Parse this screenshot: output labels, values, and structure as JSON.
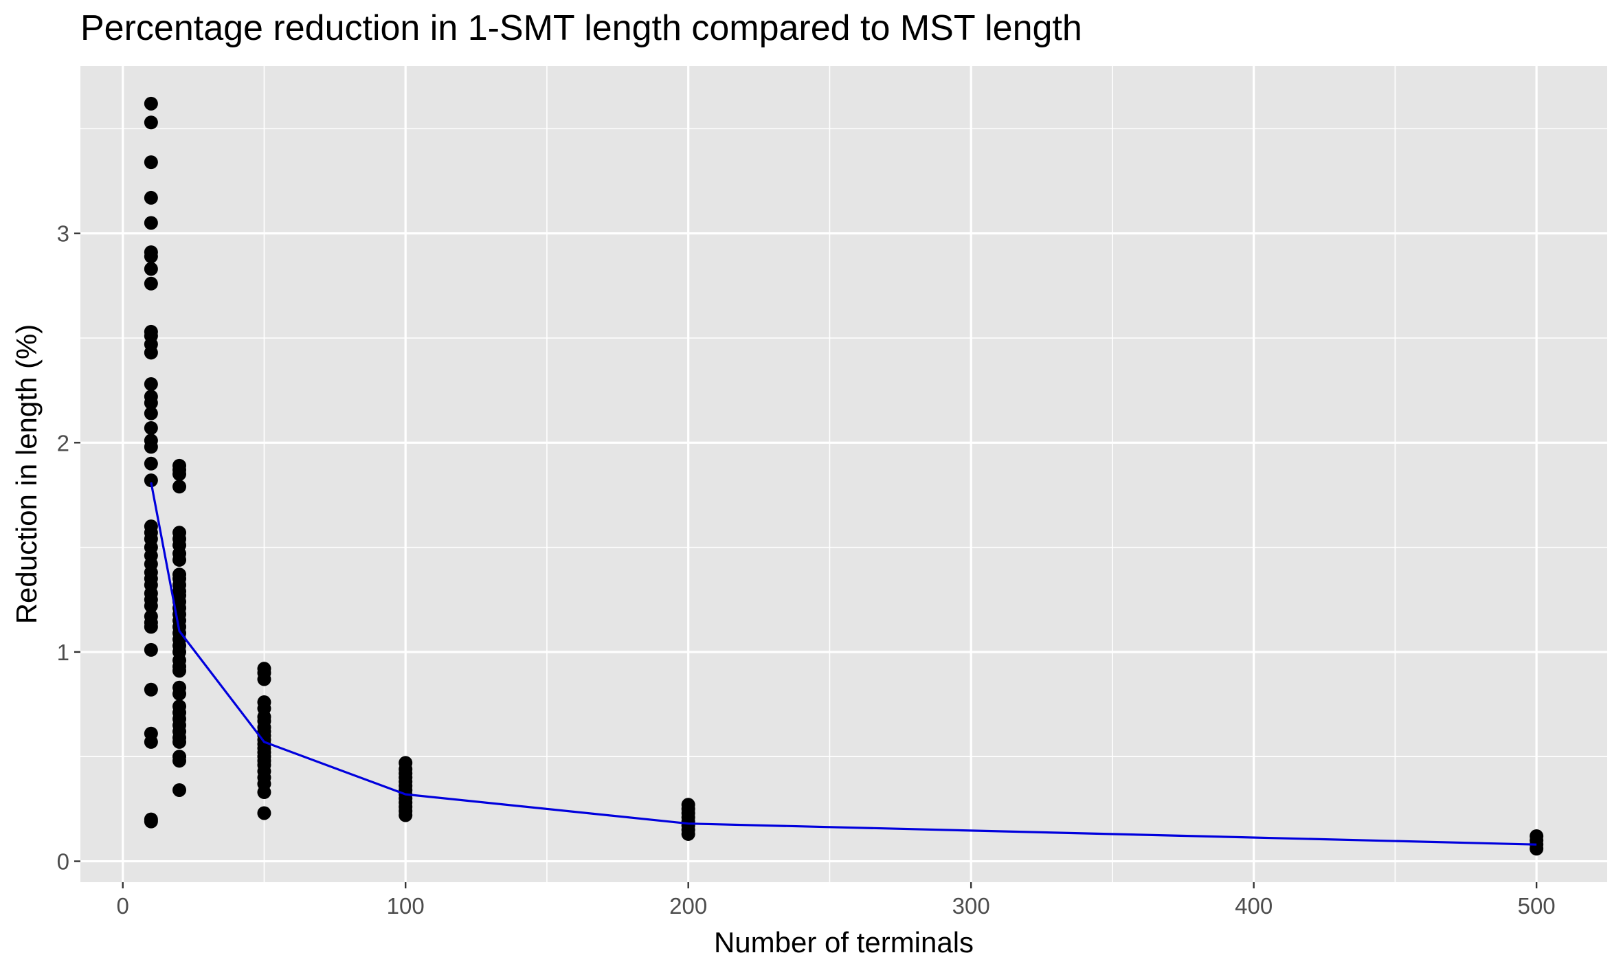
{
  "chart_data": {
    "type": "scatter",
    "title": "Percentage reduction in 1-SMT length compared to MST length",
    "xlabel": "Number of terminals",
    "ylabel": "Reduction in length (%)",
    "xlim": [
      -15,
      525
    ],
    "ylim": [
      -0.1,
      3.8
    ],
    "x_ticks": [
      0,
      100,
      200,
      300,
      400,
      500
    ],
    "x_tick_labels": [
      "0",
      "100",
      "200",
      "300",
      "400",
      "500"
    ],
    "y_ticks": [
      0,
      1,
      2,
      3
    ],
    "y_tick_labels": [
      "0",
      "1",
      "2",
      "3"
    ],
    "grid": true,
    "legend": "none",
    "colors": {
      "panel": "#e5e5e5",
      "grid": "#ffffff",
      "points": "#000000",
      "line": "#0000dd",
      "text": "#000000",
      "tick_text": "#4d4d4d"
    },
    "series": [
      {
        "kind": "points",
        "data": [
          {
            "x": 10,
            "y": [
              3.62,
              3.53,
              3.34,
              3.17,
              3.05,
              2.91,
              2.89,
              2.83,
              2.76,
              2.53,
              2.51,
              2.47,
              2.43,
              2.28,
              2.22,
              2.19,
              2.14,
              2.07,
              2.01,
              1.98,
              1.9,
              1.82,
              1.6,
              1.57,
              1.54,
              1.5,
              1.46,
              1.42,
              1.38,
              1.35,
              1.32,
              1.28,
              1.25,
              1.22,
              1.17,
              1.14,
              1.12,
              1.01,
              0.82,
              0.61,
              0.57,
              0.2,
              0.19
            ]
          },
          {
            "x": 20,
            "y": [
              1.89,
              1.87,
              1.85,
              1.79,
              1.57,
              1.54,
              1.51,
              1.47,
              1.44,
              1.37,
              1.35,
              1.32,
              1.29,
              1.27,
              1.24,
              1.21,
              1.18,
              1.15,
              1.12,
              1.09,
              1.06,
              1.03,
              1.0,
              0.96,
              0.93,
              0.91,
              0.83,
              0.8,
              0.74,
              0.71,
              0.68,
              0.65,
              0.62,
              0.59,
              0.57,
              0.5,
              0.48,
              0.34
            ]
          },
          {
            "x": 50,
            "y": [
              0.92,
              0.9,
              0.87,
              0.76,
              0.73,
              0.69,
              0.67,
              0.64,
              0.62,
              0.6,
              0.58,
              0.56,
              0.54,
              0.52,
              0.5,
              0.48,
              0.46,
              0.43,
              0.4,
              0.37,
              0.33,
              0.23
            ]
          },
          {
            "x": 100,
            "y": [
              0.47,
              0.44,
              0.42,
              0.4,
              0.38,
              0.36,
              0.34,
              0.32,
              0.3,
              0.28,
              0.26,
              0.24,
              0.22
            ]
          },
          {
            "x": 200,
            "y": [
              0.27,
              0.25,
              0.23,
              0.21,
              0.19,
              0.17,
              0.15,
              0.13
            ]
          },
          {
            "x": 500,
            "y": [
              0.12,
              0.1,
              0.08,
              0.06
            ]
          }
        ]
      },
      {
        "kind": "line",
        "x": [
          10,
          20,
          50,
          100,
          200,
          500
        ],
        "y": [
          1.81,
          1.1,
          0.57,
          0.32,
          0.18,
          0.08
        ]
      }
    ]
  }
}
